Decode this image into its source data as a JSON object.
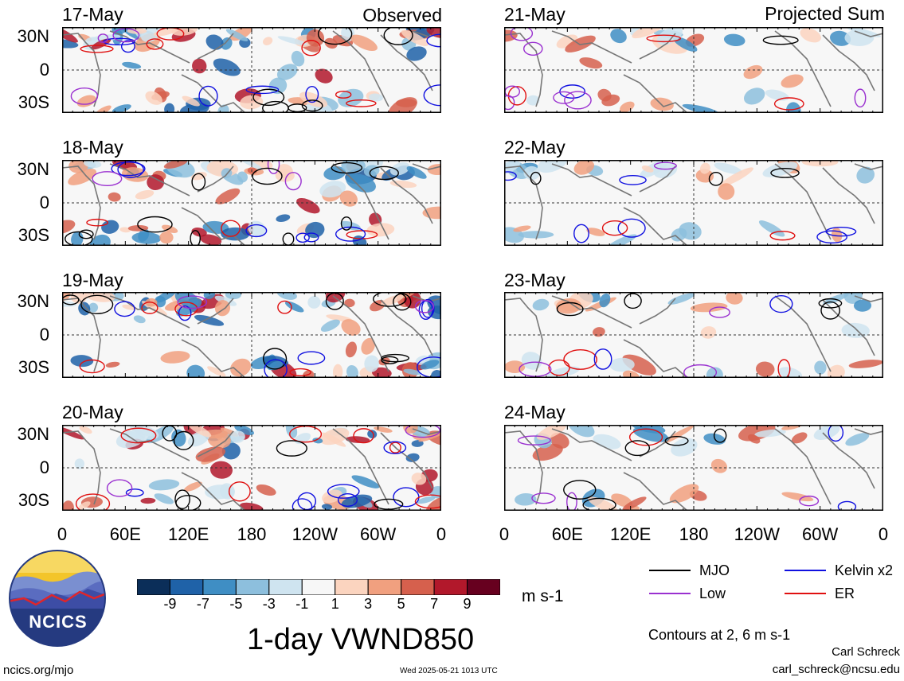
{
  "columns": [
    {
      "label": "Observed",
      "dates": [
        "17-May",
        "18-May",
        "19-May",
        "20-May"
      ]
    },
    {
      "label": "Projected Sum",
      "dates": [
        "21-May",
        "22-May",
        "23-May",
        "24-May"
      ]
    }
  ],
  "chart_data": {
    "type": "heatmap",
    "title": "1-day VWND850",
    "units": "m s-1",
    "x_ticks": [
      "0",
      "60E",
      "120E",
      "180",
      "120W",
      "60W",
      "0"
    ],
    "y_ticks": [
      "30N",
      "0",
      "30S"
    ],
    "colorbar": {
      "ticks": [
        "-9",
        "-7",
        "-5",
        "-3",
        "-1",
        "1",
        "3",
        "5",
        "7",
        "9"
      ],
      "colors": [
        "#0b2e59",
        "#1f62a8",
        "#3f8ec4",
        "#8dbfdd",
        "#cfe4f0",
        "#f7f7f7",
        "#fbd4bf",
        "#f1a07f",
        "#d6604d",
        "#b2182b",
        "#67001f"
      ]
    },
    "legend": [
      {
        "name": "MJO",
        "color": "#000000"
      },
      {
        "name": "Kelvin x2",
        "color": "#1010e0"
      },
      {
        "name": "Low",
        "color": "#9a30d0"
      },
      {
        "name": "ER",
        "color": "#e01010"
      }
    ],
    "contour_note": "Contours at 2, 6 m s-1",
    "grid": "dashed equator and 180 meridian"
  },
  "logo": {
    "text": "NCICS"
  },
  "footer": {
    "url": "ncics.org/mjo",
    "timestamp": "Wed 2025-05-21 1013 UTC",
    "author": "Carl Schreck",
    "email": "carl_schreck@ncsu.edu"
  }
}
